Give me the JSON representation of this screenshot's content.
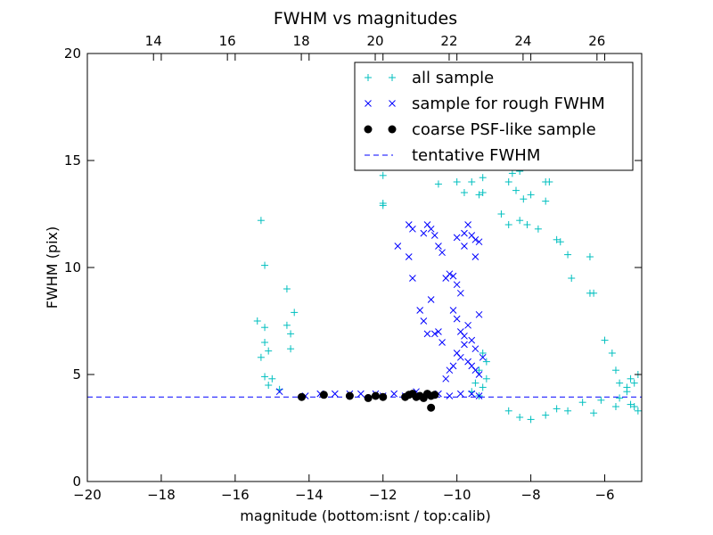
{
  "chart_data": {
    "type": "scatter",
    "title": "FWHM vs magnitudes",
    "xlabel": "magnitude (bottom:isnt / top:calib)",
    "ylabel": "FWHM (pix)",
    "xlim": [
      -20,
      -5
    ],
    "ylim": [
      0,
      20
    ],
    "x_ticks": [
      -20,
      -18,
      -16,
      -14,
      -12,
      -10,
      -8,
      -6
    ],
    "x_tick_labels": [
      "−20",
      "−18",
      "−16",
      "−14",
      "−12",
      "−10",
      "−8",
      "−6"
    ],
    "y_ticks": [
      0,
      5,
      10,
      15,
      20
    ],
    "y_tick_labels": [
      "0",
      "5",
      "10",
      "15",
      "20"
    ],
    "top_xlim": [
      12.21,
      27.21
    ],
    "top_ticks": [
      14,
      16,
      18,
      20,
      22,
      24,
      26
    ],
    "top_tick_labels": [
      "14",
      "16",
      "18",
      "20",
      "22",
      "24",
      "26"
    ],
    "grid": false,
    "legend_position": "top-right",
    "colors": {
      "all": "#00bfbf",
      "rough": "#0000ff",
      "coarse": "#000000",
      "tentative": "#0000ff"
    },
    "series": [
      {
        "name": "all sample",
        "marker": "plus",
        "points": [
          [
            -15.3,
            12.2
          ],
          [
            -15.2,
            10.1
          ],
          [
            -15.4,
            7.5
          ],
          [
            -15.2,
            7.2
          ],
          [
            -15.2,
            6.5
          ],
          [
            -15.1,
            6.1
          ],
          [
            -15.3,
            5.8
          ],
          [
            -15.2,
            4.9
          ],
          [
            -15.0,
            4.8
          ],
          [
            -15.1,
            4.5
          ],
          [
            -14.8,
            4.3
          ],
          [
            -14.6,
            9.0
          ],
          [
            -14.4,
            7.9
          ],
          [
            -14.6,
            7.3
          ],
          [
            -14.5,
            6.9
          ],
          [
            -14.5,
            6.2
          ],
          [
            -12.0,
            14.3
          ],
          [
            -12.0,
            13.0
          ],
          [
            -12.0,
            12.9
          ],
          [
            -10.5,
            13.9
          ],
          [
            -10.0,
            14.0
          ],
          [
            -9.8,
            13.5
          ],
          [
            -9.6,
            14.0
          ],
          [
            -9.4,
            13.4
          ],
          [
            -9.3,
            13.5
          ],
          [
            -9.3,
            14.2
          ],
          [
            -9.0,
            15.0
          ],
          [
            -8.8,
            14.8
          ],
          [
            -8.6,
            14.0
          ],
          [
            -8.5,
            14.4
          ],
          [
            -8.4,
            13.6
          ],
          [
            -8.3,
            14.5
          ],
          [
            -8.2,
            13.2
          ],
          [
            -8.0,
            13.4
          ],
          [
            -7.6,
            14.0
          ],
          [
            -7.5,
            14.0
          ],
          [
            -7.6,
            13.1
          ],
          [
            -8.8,
            12.5
          ],
          [
            -8.6,
            12.0
          ],
          [
            -8.3,
            12.2
          ],
          [
            -8.1,
            12.0
          ],
          [
            -7.8,
            11.8
          ],
          [
            -7.3,
            11.3
          ],
          [
            -7.2,
            11.2
          ],
          [
            -7.0,
            10.6
          ],
          [
            -6.9,
            9.5
          ],
          [
            -6.4,
            10.5
          ],
          [
            -6.4,
            8.8
          ],
          [
            -6.3,
            8.8
          ],
          [
            -6.0,
            6.6
          ],
          [
            -5.8,
            6.0
          ],
          [
            -5.7,
            5.2
          ],
          [
            -5.6,
            4.6
          ],
          [
            -5.4,
            4.4
          ],
          [
            -5.3,
            4.8
          ],
          [
            -5.3,
            3.6
          ],
          [
            -5.2,
            4.6
          ],
          [
            -5.1,
            5.0
          ],
          [
            -5.1,
            3.3
          ],
          [
            -5.2,
            3.5
          ],
          [
            -5.4,
            4.2
          ],
          [
            -5.6,
            3.9
          ],
          [
            -5.7,
            3.5
          ],
          [
            -6.1,
            3.8
          ],
          [
            -6.3,
            3.2
          ],
          [
            -6.6,
            3.7
          ],
          [
            -7.0,
            3.3
          ],
          [
            -7.3,
            3.4
          ],
          [
            -7.6,
            3.1
          ],
          [
            -8.0,
            2.9
          ],
          [
            -8.3,
            3.0
          ],
          [
            -8.6,
            3.3
          ],
          [
            -9.6,
            4.2
          ],
          [
            -9.4,
            4.0
          ],
          [
            -9.3,
            4.4
          ],
          [
            -9.5,
            4.6
          ],
          [
            -9.2,
            4.8
          ],
          [
            -9.4,
            5.2
          ],
          [
            -9.2,
            5.6
          ],
          [
            -9.3,
            6.0
          ]
        ]
      },
      {
        "name": "sample for rough FWHM",
        "marker": "x",
        "points": [
          [
            -14.8,
            4.2
          ],
          [
            -14.1,
            4.0
          ],
          [
            -13.7,
            4.1
          ],
          [
            -13.3,
            4.1
          ],
          [
            -12.9,
            4.1
          ],
          [
            -12.6,
            4.1
          ],
          [
            -12.2,
            4.1
          ],
          [
            -12.0,
            4.0
          ],
          [
            -11.7,
            4.1
          ],
          [
            -11.4,
            4.0
          ],
          [
            -11.1,
            4.2
          ],
          [
            -10.8,
            4.0
          ],
          [
            -10.5,
            4.1
          ],
          [
            -10.2,
            4.0
          ],
          [
            -9.9,
            4.1
          ],
          [
            -9.6,
            4.1
          ],
          [
            -9.4,
            4.0
          ],
          [
            -11.6,
            11.0
          ],
          [
            -11.3,
            10.5
          ],
          [
            -11.2,
            9.5
          ],
          [
            -11.0,
            8.0
          ],
          [
            -10.9,
            7.5
          ],
          [
            -10.8,
            6.9
          ],
          [
            -10.7,
            8.5
          ],
          [
            -10.6,
            6.9
          ],
          [
            -10.5,
            7.0
          ],
          [
            -10.4,
            6.5
          ],
          [
            -10.3,
            4.8
          ],
          [
            -11.3,
            12.0
          ],
          [
            -11.2,
            11.8
          ],
          [
            -10.9,
            11.6
          ],
          [
            -10.8,
            12.0
          ],
          [
            -10.7,
            11.8
          ],
          [
            -10.6,
            11.5
          ],
          [
            -10.5,
            11.0
          ],
          [
            -10.4,
            10.7
          ],
          [
            -10.3,
            9.5
          ],
          [
            -10.2,
            9.7
          ],
          [
            -10.1,
            9.6
          ],
          [
            -10.0,
            11.4
          ],
          [
            -10.0,
            9.2
          ],
          [
            -9.9,
            8.8
          ],
          [
            -9.8,
            11.6
          ],
          [
            -9.8,
            11.0
          ],
          [
            -9.7,
            12.0
          ],
          [
            -9.6,
            11.5
          ],
          [
            -9.5,
            11.3
          ],
          [
            -9.5,
            10.5
          ],
          [
            -9.4,
            11.2
          ],
          [
            -10.1,
            8.0
          ],
          [
            -10.0,
            7.6
          ],
          [
            -9.9,
            7.0
          ],
          [
            -9.8,
            6.8
          ],
          [
            -9.7,
            7.3
          ],
          [
            -9.6,
            6.6
          ],
          [
            -9.5,
            6.2
          ],
          [
            -9.4,
            7.8
          ],
          [
            -10.0,
            6.0
          ],
          [
            -9.9,
            5.8
          ],
          [
            -9.8,
            6.4
          ],
          [
            -9.7,
            5.6
          ],
          [
            -9.6,
            5.4
          ],
          [
            -9.5,
            5.2
          ],
          [
            -9.4,
            5.0
          ],
          [
            -9.3,
            5.8
          ],
          [
            -10.1,
            5.4
          ],
          [
            -10.2,
            5.2
          ]
        ]
      },
      {
        "name": "coarse PSF-like sample",
        "marker": "dot",
        "points": [
          [
            -14.2,
            3.95
          ],
          [
            -13.6,
            4.05
          ],
          [
            -12.9,
            4.0
          ],
          [
            -12.4,
            3.9
          ],
          [
            -12.2,
            4.0
          ],
          [
            -12.0,
            3.95
          ],
          [
            -11.4,
            3.95
          ],
          [
            -11.3,
            4.05
          ],
          [
            -11.2,
            4.1
          ],
          [
            -11.1,
            3.95
          ],
          [
            -11.0,
            4.0
          ],
          [
            -10.9,
            3.9
          ],
          [
            -10.8,
            4.1
          ],
          [
            -10.7,
            4.0
          ],
          [
            -10.7,
            3.45
          ],
          [
            -10.6,
            4.05
          ]
        ]
      },
      {
        "name": "tentative FWHM",
        "style": "dashed",
        "y": 3.95
      }
    ]
  }
}
